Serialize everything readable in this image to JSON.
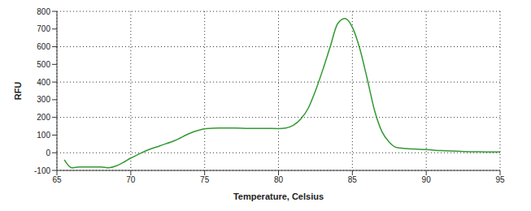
{
  "chart_data": {
    "type": "line",
    "xlabel": "Temperature, Celsius",
    "ylabel": "RFU",
    "x": [
      65.5,
      66,
      66.5,
      67,
      68,
      68.5,
      69,
      69.5,
      70,
      70.5,
      71,
      72,
      73,
      74,
      74.5,
      75,
      76,
      77,
      78,
      79,
      80,
      80.5,
      81,
      81.5,
      82,
      82.5,
      83,
      83.5,
      84,
      84.5,
      85,
      85.5,
      86,
      86.5,
      87,
      87.5,
      88,
      89,
      90,
      91,
      92,
      93,
      94,
      95
    ],
    "values": [
      -40,
      -85,
      -80,
      -80,
      -80,
      -85,
      -75,
      -55,
      -30,
      -10,
      10,
      40,
      70,
      110,
      125,
      135,
      140,
      140,
      138,
      138,
      137,
      140,
      155,
      190,
      250,
      350,
      470,
      600,
      730,
      760,
      710,
      590,
      420,
      240,
      120,
      60,
      30,
      22,
      18,
      12,
      9,
      6,
      5,
      4
    ],
    "color": "#339933",
    "xlim": [
      65,
      95
    ],
    "xticks": [
      65,
      70,
      75,
      80,
      85,
      90,
      95
    ],
    "ylim": [
      -100,
      800
    ],
    "yticks": [
      -100,
      0,
      100,
      200,
      300,
      400,
      500,
      600,
      700,
      800
    ],
    "grid": true
  }
}
